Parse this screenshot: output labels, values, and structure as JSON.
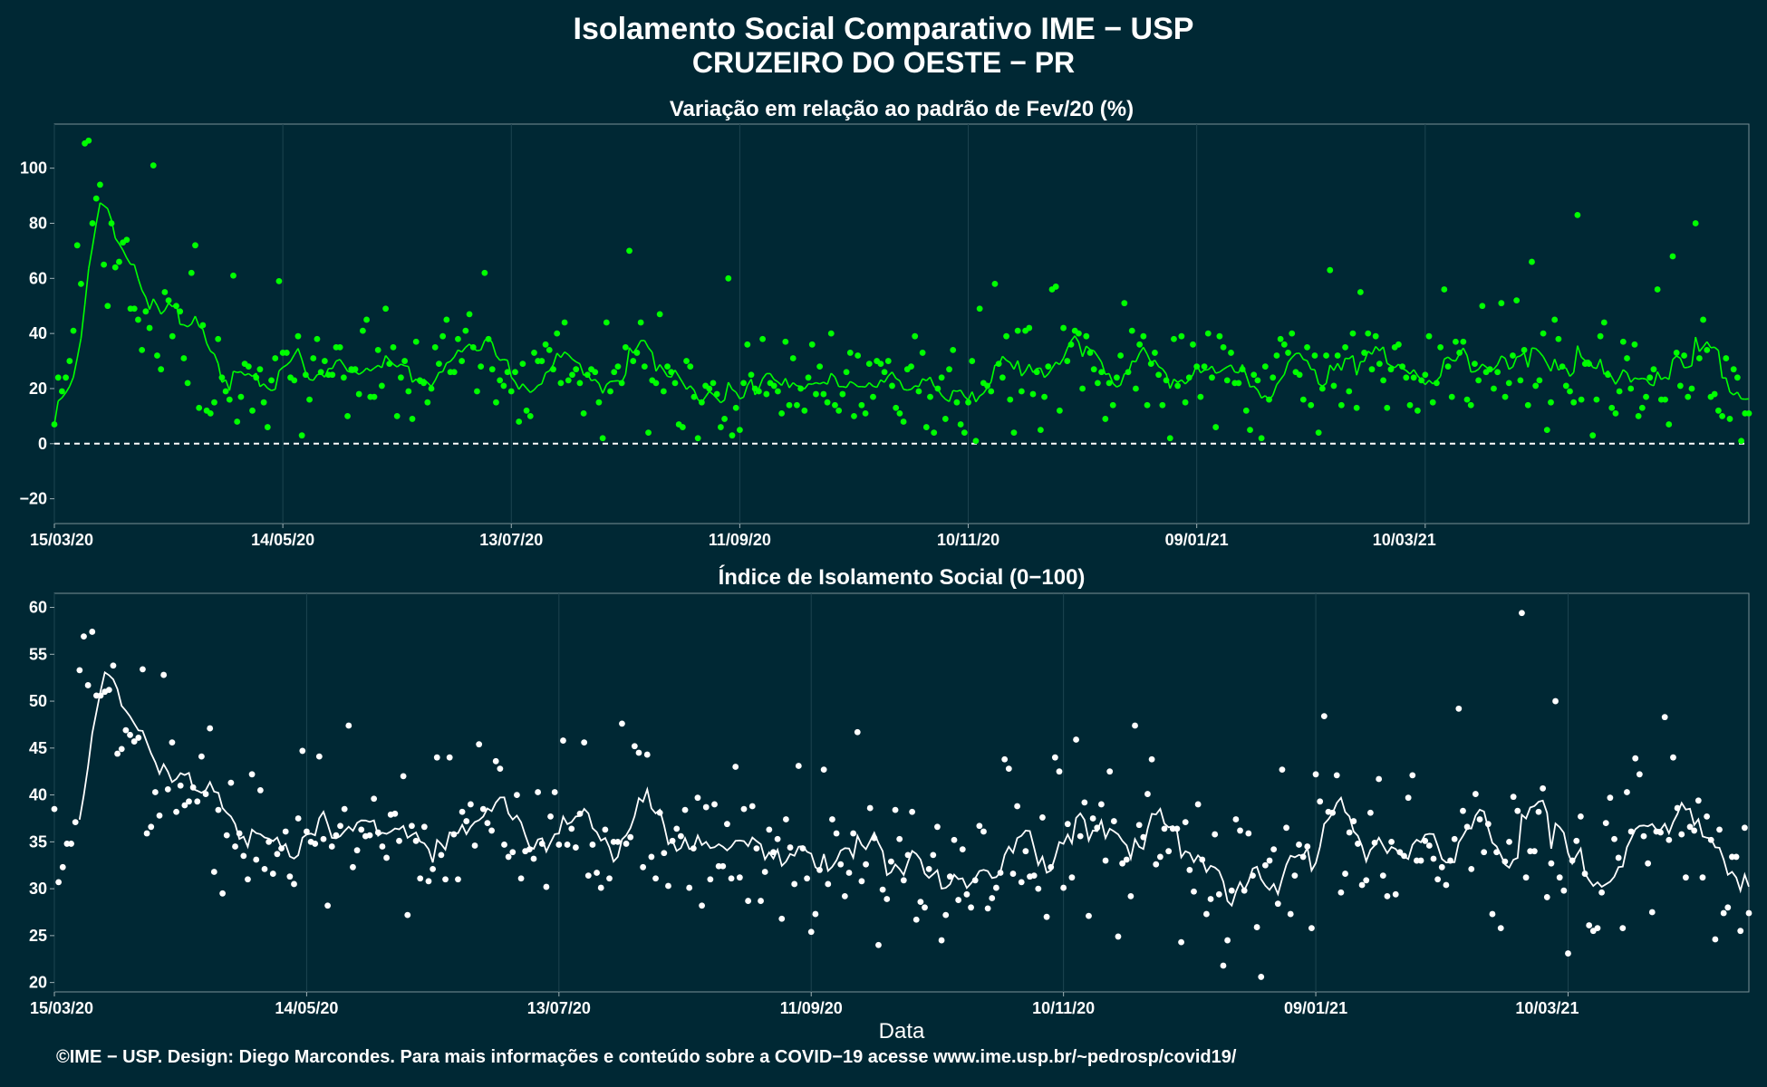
{
  "title_line1": "Isolamento Social Comparativo IME − USP",
  "title_line2": "CRUZEIRO DO OESTE − PR",
  "footer": "©IME − USP. Design: Diego Marcondes. Para mais informações e conteúdo sobre a COVID−19 acesse www.ime.usp.br/~pedrosp/covid19/",
  "colors": {
    "background": "#002834",
    "positive": "#00ff00",
    "negative": "#ff0000",
    "index": "#ffffff",
    "grid": "#1d4450"
  },
  "chart_data": [
    {
      "type": "scatter",
      "title": "Variação em relação ao padrão de Fev/20 (%)",
      "xlabel": "",
      "ylabel": "",
      "x_ticks": [
        "15/03/20",
        "14/05/20",
        "13/07/20",
        "11/09/20",
        "10/11/20",
        "09/01/21",
        "10/03/21"
      ],
      "xlim": [
        "15/03/20",
        "14/03/21"
      ],
      "ylim": [
        -29,
        116
      ],
      "y_ticks": [
        -20,
        0,
        20,
        40,
        60,
        80,
        100
      ],
      "reference_line": 0,
      "series": [
        {
          "kind": "points",
          "values": [
            7,
            24,
            19,
            24,
            30,
            41,
            72,
            58,
            109,
            110,
            80,
            89,
            94,
            65,
            50,
            80,
            64,
            66,
            73,
            74,
            49,
            49,
            45,
            34,
            48,
            42,
            101,
            32,
            27,
            55,
            52,
            39,
            50,
            48,
            31,
            22,
            62,
            72,
            13,
            43,
            12,
            11,
            15,
            38,
            24,
            19,
            16,
            61,
            8,
            17,
            29,
            28,
            12,
            24,
            27,
            15,
            6,
            23,
            31,
            59,
            33,
            33,
            24,
            23,
            39,
            3,
            25,
            16,
            31,
            38,
            26,
            30,
            25,
            25,
            35,
            35,
            24,
            10,
            27,
            27,
            18,
            41,
            45,
            17,
            17,
            34,
            21,
            49,
            29,
            35,
            10,
            24,
            30,
            19,
            9,
            37,
            23,
            22,
            15,
            20,
            35,
            29,
            39,
            45,
            26,
            26,
            38,
            30,
            41,
            47,
            35,
            19,
            28,
            62,
            38,
            27,
            15,
            23,
            21,
            26,
            19,
            26,
            8,
            29,
            12,
            10,
            33,
            30,
            30,
            36,
            34,
            27,
            40,
            22,
            44,
            23,
            25,
            27,
            22,
            11,
            25,
            27,
            26,
            15,
            2,
            44,
            19,
            26,
            28,
            22,
            35,
            70,
            30,
            33,
            44,
            28,
            4,
            23,
            22,
            47,
            19,
            28,
            26,
            22,
            7,
            6,
            30,
            28,
            17,
            2,
            15,
            21,
            20,
            22,
            18,
            6,
            9,
            60,
            3,
            13,
            5,
            22,
            36,
            25,
            20,
            19,
            38,
            18,
            22,
            21,
            19,
            11,
            37,
            14,
            31,
            14,
            20,
            12,
            24,
            36,
            18,
            28,
            18,
            15,
            40,
            14,
            12,
            18,
            26,
            33,
            10,
            32,
            14,
            11,
            29,
            17,
            30,
            29,
            26,
            30,
            21,
            13,
            11,
            8,
            27,
            28,
            39,
            19,
            33,
            6,
            17,
            4,
            20,
            24,
            9,
            27,
            34,
            15,
            7,
            4,
            15,
            30,
            1,
            49,
            22,
            21,
            19,
            58,
            29,
            24,
            39,
            16,
            4,
            41,
            19,
            41,
            42,
            18,
            26,
            5,
            17,
            28,
            56,
            57,
            12,
            42,
            30,
            36,
            41,
            40,
            20,
            39,
            33,
            27,
            22,
            26,
            9,
            22,
            14,
            24,
            32,
            51,
            26,
            41,
            20,
            36,
            39,
            14,
            29,
            33,
            25,
            14,
            23,
            2,
            38,
            21,
            39,
            15,
            24,
            36,
            28,
            17,
            28,
            40,
            24,
            6,
            39,
            35,
            23,
            33,
            22,
            22,
            27,
            12,
            5,
            25,
            23,
            2,
            28,
            16,
            24,
            32,
            38,
            36,
            33,
            40,
            26,
            25,
            16,
            35,
            14,
            32,
            4,
            20,
            32,
            63,
            21,
            32,
            14,
            35,
            19,
            40,
            13,
            55,
            33,
            40,
            27,
            39,
            29,
            23,
            13,
            27,
            35,
            36,
            28,
            24,
            14,
            24,
            12,
            23,
            25,
            39,
            15,
            22,
            35,
            56,
            28,
            17,
            37,
            33,
            37,
            16,
            14,
            29,
            23,
            50,
            26,
            27,
            20,
            26,
            51,
            17,
            22,
            32,
            52,
            23,
            34,
            14,
            66,
            21,
            23,
            40,
            5,
            15,
            45,
            38,
            28,
            21,
            19,
            15,
            83,
            16,
            29,
            29,
            3,
            16,
            39,
            44,
            25,
            13,
            11,
            19,
            37,
            31,
            20,
            36,
            10,
            13,
            17,
            24,
            27,
            56,
            16,
            16,
            7,
            68,
            33,
            21,
            32,
            17,
            20,
            80,
            31,
            45,
            34,
            17,
            18,
            12,
            10,
            31,
            9,
            27,
            24,
            1,
            11,
            11
          ]
        },
        {
          "kind": "line",
          "name": "",
          "values": []
        }
      ]
    },
    {
      "type": "scatter",
      "title": "Índice de Isolamento Social (0−100)",
      "xlabel": "Data",
      "ylabel": "",
      "x_ticks": [
        "15/03/20",
        "14/05/20",
        "13/07/20",
        "11/09/20",
        "10/11/20",
        "09/01/21",
        "10/03/21"
      ],
      "xlim": [
        "15/03/20",
        "14/03/21"
      ],
      "ylim": [
        19,
        61.5
      ],
      "y_ticks": [
        20,
        25,
        30,
        35,
        40,
        45,
        50,
        55,
        60
      ],
      "series": [
        {
          "kind": "points",
          "values": [
            38.5,
            30.7,
            32.3,
            34.8,
            34.8,
            37.1,
            53.3,
            56.9,
            51.7,
            57.4,
            50.6,
            50.6,
            51.0,
            51.2,
            53.8,
            44.4,
            44.9,
            46.9,
            46.4,
            45.7,
            46.1,
            53.4,
            35.9,
            36.6,
            40.3,
            37.8,
            52.8,
            40.6,
            45.6,
            38.2,
            41.0,
            38.9,
            39.3,
            40.8,
            39.3,
            44.1,
            40.1,
            47.1,
            31.8,
            38.4,
            29.5,
            35.7,
            41.3,
            34.5,
            35.9,
            33.5,
            31.0,
            42.2,
            33.1,
            40.5,
            32.1,
            35.0,
            31.6,
            33.7,
            34.3,
            36.1,
            31.3,
            30.5,
            37.5,
            44.7,
            36.1,
            35.0,
            34.8,
            44.1,
            35.3,
            28.2,
            34.5,
            35.7,
            36.7,
            38.5,
            47.4,
            32.3,
            34.1,
            36.3,
            35.6,
            35.7,
            39.6,
            36.0,
            34.5,
            33.3,
            37.9,
            38.0,
            35.1,
            42.0,
            27.2,
            36.7,
            35.1,
            31.1,
            36.6,
            30.8,
            32.1,
            44.0,
            33.6,
            31.0,
            44.0,
            35.8,
            31.0,
            38.2,
            37.2,
            39.0,
            34.6,
            45.4,
            38.5,
            37.0,
            36.2,
            43.6,
            42.8,
            34.7,
            33.4,
            33.9,
            40.0,
            31.1,
            34.0,
            34.2,
            33.2,
            40.3,
            34.8,
            30.2,
            37.7,
            40.3,
            34.7,
            45.8,
            34.7,
            36.4,
            34.4,
            38.0,
            45.6,
            31.4,
            34.7,
            31.7,
            30.1,
            36.3,
            31.1,
            35.0,
            35.0,
            47.6,
            34.8,
            35.5,
            45.2,
            44.5,
            32.3,
            44.3,
            33.4,
            31.1,
            38.1,
            33.8,
            30.3,
            35.1,
            36.4,
            35.6,
            38.4,
            30.1,
            34.3,
            39.7,
            28.2,
            38.7,
            31.0,
            39.0,
            32.4,
            32.4,
            36.9,
            31.1,
            43.0,
            31.2,
            38.5,
            28.7,
            38.8,
            34.3,
            28.7,
            31.8,
            36.3,
            33.9,
            35.3,
            26.8,
            37.4,
            34.4,
            30.5,
            43.1,
            34.3,
            31.1,
            25.4,
            27.3,
            32.0,
            42.7,
            30.5,
            37.4,
            35.9,
            32.6,
            29.2,
            31.7,
            35.9,
            46.7,
            30.8,
            32.6,
            38.6,
            35.4,
            24.0,
            29.9,
            28.9,
            32.9,
            38.4,
            35.3,
            30.9,
            33.6,
            38.2,
            26.7,
            28.6,
            28.0,
            32.1,
            33.6,
            36.6,
            24.5,
            27.2,
            31.3,
            35.2,
            28.8,
            34.2,
            29.4,
            28.0,
            30.9,
            36.7,
            36.1,
            27.9,
            29.0,
            30.1,
            31.7,
            43.8,
            42.8,
            31.6,
            38.8,
            30.7,
            34.0,
            31.3,
            31.4,
            30.0,
            37.6,
            27.0,
            32.3,
            44.0,
            42.5,
            30.1,
            36.9,
            31.2,
            45.9,
            35.6,
            39.2,
            27.1,
            37.5,
            36.5,
            39.0,
            33.0,
            42.5,
            37.2,
            24.9,
            32.7,
            33.1,
            29.2,
            47.4,
            36.8,
            35.5,
            40.1,
            43.8,
            32.6,
            33.4,
            36.4,
            34.0,
            36.4,
            36.4,
            24.3,
            37.1,
            32.0,
            29.7,
            39.0,
            33.1,
            27.3,
            28.9,
            35.8,
            29.4,
            21.8,
            24.5,
            29.8,
            37.4,
            36.2,
            29.8,
            35.9,
            31.4,
            25.9,
            20.6,
            32.5,
            33.0,
            34.2,
            28.4,
            42.7,
            36.5,
            27.3,
            31.4,
            34.7,
            33.4,
            34.5,
            25.8,
            42.2,
            39.3,
            48.4,
            38.2,
            38.1,
            42.1,
            29.6,
            31.6,
            36.0,
            37.2,
            34.8,
            30.4,
            30.9,
            38.1,
            34.9,
            41.7,
            31.4,
            29.2,
            35.0,
            29.4,
            33.9,
            33.5,
            39.7,
            42.1,
            33.0,
            33.0,
            35.1,
            34.6,
            33.2,
            31.0,
            32.3,
            30.4,
            33.0,
            35.3,
            49.2,
            38.3,
            36.6,
            32.1,
            40.1,
            37.4,
            33.9,
            36.9,
            27.3,
            33.9,
            25.8,
            32.9,
            35.0,
            39.8,
            38.3,
            59.4,
            31.2,
            34.0,
            34.0,
            38.2,
            40.7,
            29.1,
            32.7,
            50.0,
            31.2,
            29.8,
            23.1,
            33.0,
            35.1,
            37.7,
            31.6,
            26.1,
            25.5,
            25.8,
            29.6,
            37.0,
            39.7,
            35.3,
            33.3,
            25.8,
            40.3,
            36.1,
            43.9,
            42.2,
            35.6,
            32.7,
            27.5,
            36.1,
            36.0,
            48.3,
            35.2,
            44.0,
            38.6,
            35.8,
            31.2,
            36.6,
            36.2,
            39.4,
            31.2,
            37.7,
            35.2,
            24.6,
            36.3,
            27.4,
            28.0,
            33.4,
            33.4,
            25.5,
            36.5,
            27.4
          ]
        },
        {
          "kind": "line",
          "name": "",
          "values": []
        }
      ]
    }
  ]
}
